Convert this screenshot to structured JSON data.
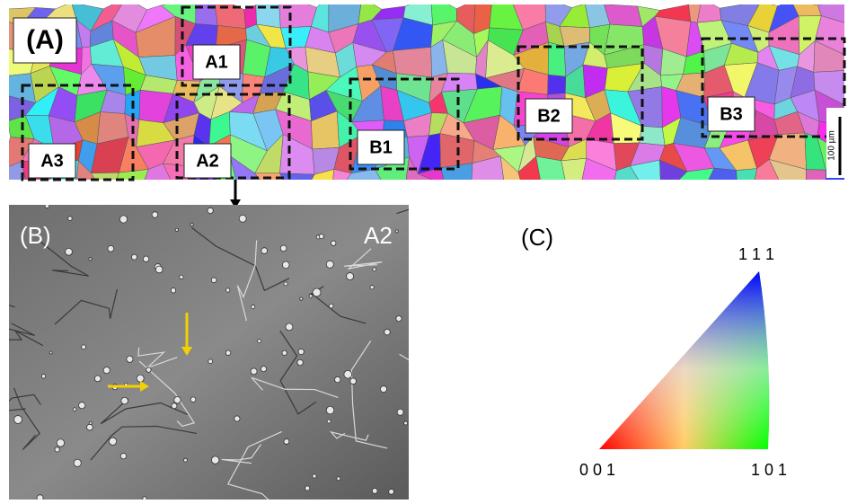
{
  "panel_a": {
    "label": "(A)",
    "regions": [
      "A1",
      "A2",
      "A3",
      "B1",
      "B2",
      "B3"
    ],
    "scale_bar": "100 µm"
  },
  "panel_b": {
    "label": "(B)",
    "region": "A2"
  },
  "panel_c": {
    "label": "(C)",
    "corners": {
      "top": "1 1 1",
      "left": "0 0 1",
      "right": "1 0 1"
    }
  }
}
